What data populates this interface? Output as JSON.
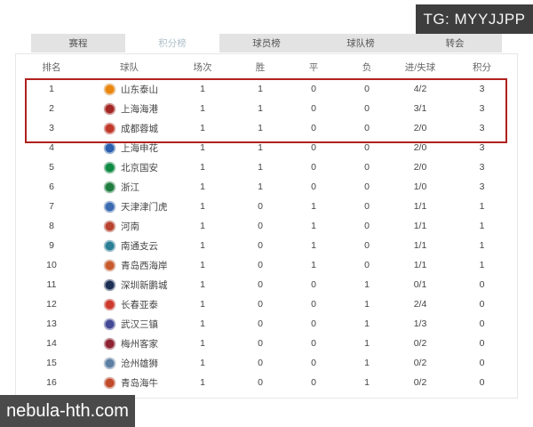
{
  "watermarks": {
    "top_right": "TG: MYYJJPP",
    "bottom_left": "nebula-hth.com"
  },
  "tabs": [
    {
      "label": "赛程",
      "active": false
    },
    {
      "label": "积分榜",
      "active": true
    },
    {
      "label": "球员榜",
      "active": false
    },
    {
      "label": "球队榜",
      "active": false
    },
    {
      "label": "转会",
      "active": false
    }
  ],
  "table": {
    "columns": [
      "排名",
      "球队",
      "场次",
      "胜",
      "平",
      "负",
      "进/失球",
      "积分"
    ],
    "highlight": {
      "rows": [
        1,
        2,
        3
      ],
      "border_color": "#b0211d"
    },
    "rows": [
      {
        "rank": "1",
        "team": "山东泰山",
        "logo_color": "#e8860f",
        "played": "1",
        "win": "1",
        "draw": "0",
        "loss": "0",
        "goals": "4/2",
        "points": "3"
      },
      {
        "rank": "2",
        "team": "上海海港",
        "logo_color": "#a32724",
        "played": "1",
        "win": "1",
        "draw": "0",
        "loss": "0",
        "goals": "3/1",
        "points": "3"
      },
      {
        "rank": "3",
        "team": "成都蓉城",
        "logo_color": "#c0392b",
        "played": "1",
        "win": "1",
        "draw": "0",
        "loss": "0",
        "goals": "2/0",
        "points": "3"
      },
      {
        "rank": "4",
        "team": "上海申花",
        "logo_color": "#2b5fae",
        "played": "1",
        "win": "1",
        "draw": "0",
        "loss": "0",
        "goals": "2/0",
        "points": "3"
      },
      {
        "rank": "5",
        "team": "北京国安",
        "logo_color": "#0f8a43",
        "played": "1",
        "win": "1",
        "draw": "0",
        "loss": "0",
        "goals": "2/0",
        "points": "3"
      },
      {
        "rank": "6",
        "team": "浙江",
        "logo_color": "#1e7d3e",
        "played": "1",
        "win": "1",
        "draw": "0",
        "loss": "0",
        "goals": "1/0",
        "points": "3"
      },
      {
        "rank": "7",
        "team": "天津津门虎",
        "logo_color": "#3a6bb0",
        "played": "1",
        "win": "0",
        "draw": "1",
        "loss": "0",
        "goals": "1/1",
        "points": "1"
      },
      {
        "rank": "8",
        "team": "河南",
        "logo_color": "#b8432f",
        "played": "1",
        "win": "0",
        "draw": "1",
        "loss": "0",
        "goals": "1/1",
        "points": "1"
      },
      {
        "rank": "9",
        "team": "南通支云",
        "logo_color": "#2a7f96",
        "played": "1",
        "win": "0",
        "draw": "1",
        "loss": "0",
        "goals": "1/1",
        "points": "1"
      },
      {
        "rank": "10",
        "team": "青岛西海岸",
        "logo_color": "#c75b2d",
        "played": "1",
        "win": "0",
        "draw": "1",
        "loss": "0",
        "goals": "1/1",
        "points": "1"
      },
      {
        "rank": "11",
        "team": "深圳新鹏城",
        "logo_color": "#1d2f55",
        "played": "1",
        "win": "0",
        "draw": "0",
        "loss": "1",
        "goals": "0/1",
        "points": "0"
      },
      {
        "rank": "12",
        "team": "长春亚泰",
        "logo_color": "#cc3b2e",
        "played": "1",
        "win": "0",
        "draw": "0",
        "loss": "1",
        "goals": "2/4",
        "points": "0"
      },
      {
        "rank": "13",
        "team": "武汉三镇",
        "logo_color": "#454a96",
        "played": "1",
        "win": "0",
        "draw": "0",
        "loss": "1",
        "goals": "1/3",
        "points": "0"
      },
      {
        "rank": "14",
        "team": "梅州客家",
        "logo_color": "#8e2433",
        "played": "1",
        "win": "0",
        "draw": "0",
        "loss": "1",
        "goals": "0/2",
        "points": "0"
      },
      {
        "rank": "15",
        "team": "沧州雄狮",
        "logo_color": "#5d7fa3",
        "played": "1",
        "win": "0",
        "draw": "0",
        "loss": "1",
        "goals": "0/2",
        "points": "0"
      },
      {
        "rank": "16",
        "team": "青岛海牛",
        "logo_color": "#c04a2a",
        "played": "1",
        "win": "0",
        "draw": "0",
        "loss": "1",
        "goals": "0/2",
        "points": "0"
      }
    ]
  }
}
